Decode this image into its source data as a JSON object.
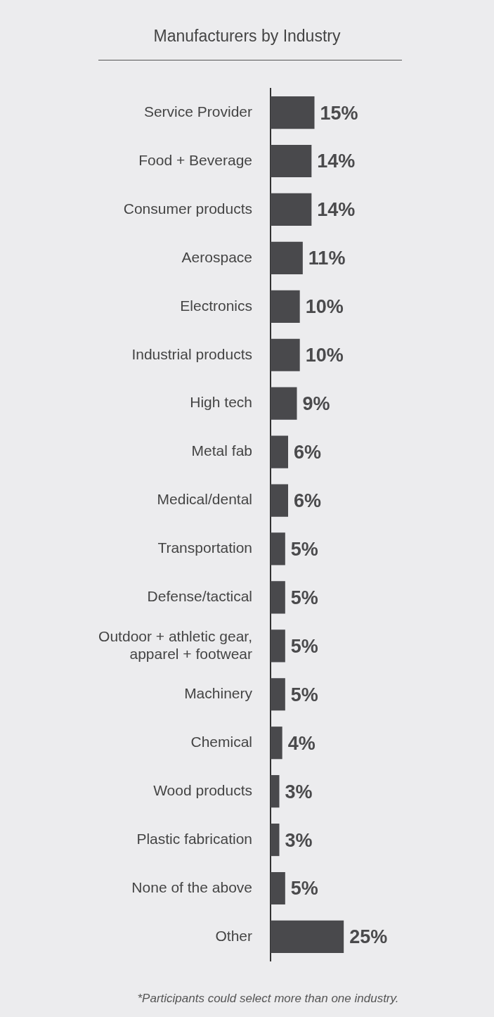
{
  "chart_data": {
    "type": "bar",
    "orientation": "horizontal",
    "title": "Manufacturers by Industry",
    "categories": [
      "Service Provider",
      "Food + Beverage",
      "Consumer products",
      "Aerospace",
      "Electronics",
      "Industrial products",
      "High tech",
      "Metal fab",
      "Medical/dental",
      "Transportation",
      "Defense/tactical",
      "Outdoor + athletic gear, apparel + footwear",
      "Machinery",
      "Chemical",
      "Wood products",
      "Plastic fabrication",
      "None of the above",
      "Other"
    ],
    "values": [
      15,
      14,
      14,
      11,
      10,
      10,
      9,
      6,
      6,
      5,
      5,
      5,
      5,
      4,
      3,
      3,
      5,
      25
    ],
    "value_labels": [
      "15%",
      "14%",
      "14%",
      "11%",
      "10%",
      "10%",
      "9%",
      "6%",
      "6%",
      "5%",
      "5%",
      "5%",
      "5%",
      "4%",
      "3%",
      "3%",
      "5%",
      "25%"
    ],
    "color": "#49494c",
    "legend": false,
    "tick_labels": "y",
    "annotations": [
      "*Participants could select more than one industry."
    ]
  }
}
